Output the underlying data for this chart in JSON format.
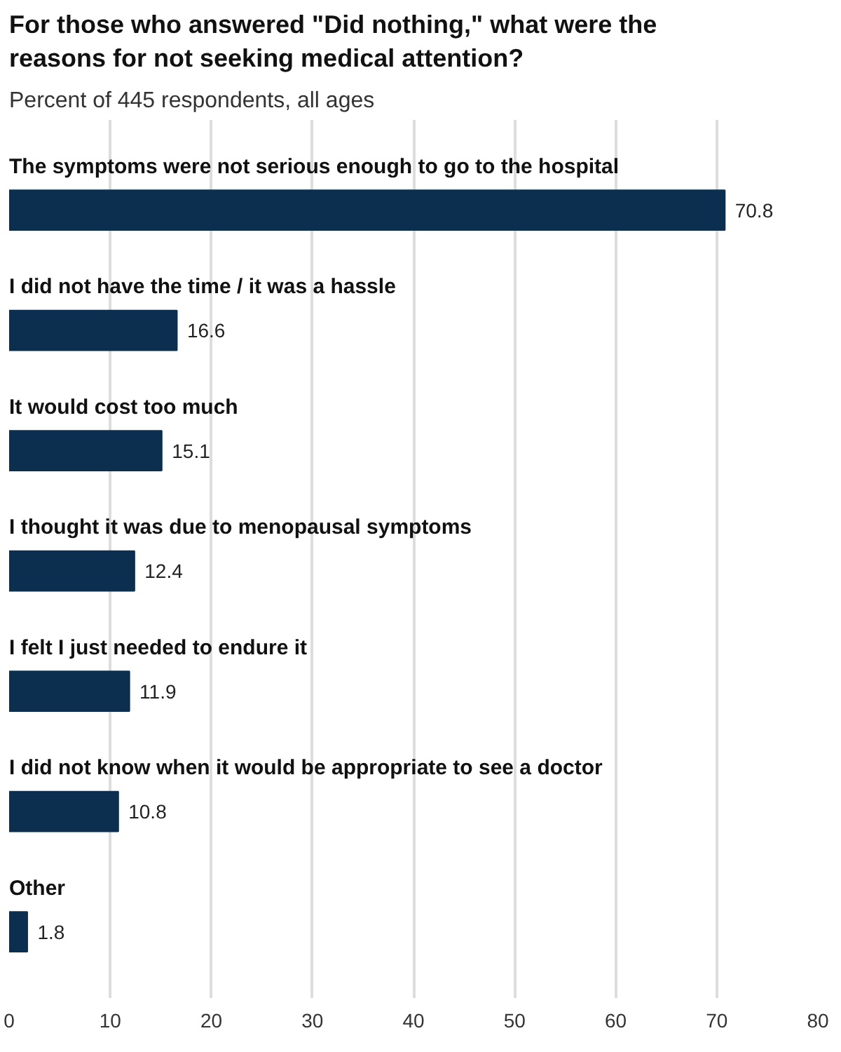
{
  "chart_data": {
    "type": "bar",
    "orientation": "horizontal",
    "title": "For those who answered \"Did nothing,\" what were the reasons for not seeking medical attention?",
    "subtitle": "Percent of 445 respondents, all ages",
    "categories": [
      "The symptoms were not serious enough to go to the hospital",
      "I did not have the time / it was a hassle",
      "It would cost too much",
      "I thought it was due to menopausal symptoms",
      "I felt I just needed to endure it",
      "I did not know when it would be appropriate to see a doctor",
      "Other"
    ],
    "values": [
      70.8,
      16.6,
      15.1,
      12.4,
      11.9,
      10.8,
      1.8
    ],
    "color": "#0d2f4f",
    "xlim": [
      0,
      80
    ],
    "xticks": [
      0,
      10,
      20,
      30,
      40,
      50,
      60,
      70,
      80
    ],
    "grid": "x",
    "data_labels": true
  }
}
